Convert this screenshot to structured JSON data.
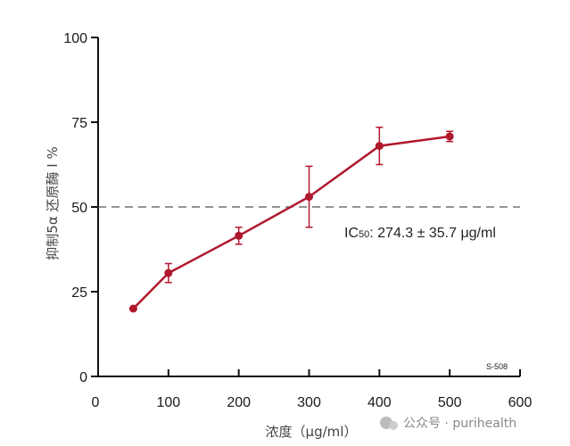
{
  "chart_data": {
    "type": "line",
    "xlabel": "浓度（μg/ml）",
    "ylabel": "抑制5α 还原酶 I %",
    "xlim": [
      0,
      600
    ],
    "ylim": [
      0,
      100
    ],
    "x_ticks": [
      "0",
      "100",
      "200",
      "300",
      "400",
      "500",
      "600"
    ],
    "y_ticks": [
      "0",
      "25",
      "50",
      "75",
      "100"
    ],
    "grid": false,
    "series": [
      {
        "x": [
          50,
          100,
          200,
          300,
          400,
          500
        ],
        "y": [
          20,
          30.5,
          41.5,
          53,
          68,
          70.8
        ],
        "error": [
          0,
          2.8,
          2.5,
          9,
          5.5,
          1.5
        ],
        "color": "#b0182d"
      }
    ],
    "reference_line": {
      "y": 50,
      "style": "dashed",
      "color": "#555555"
    },
    "annotation_ic_prefix": "IC",
    "annotation_ic_sub": "50",
    "annotation_ic_value": ": 274.3 ± 35.7 μg/ml",
    "figure_code": "S-508",
    "watermark": "公众号 · purihealth"
  }
}
